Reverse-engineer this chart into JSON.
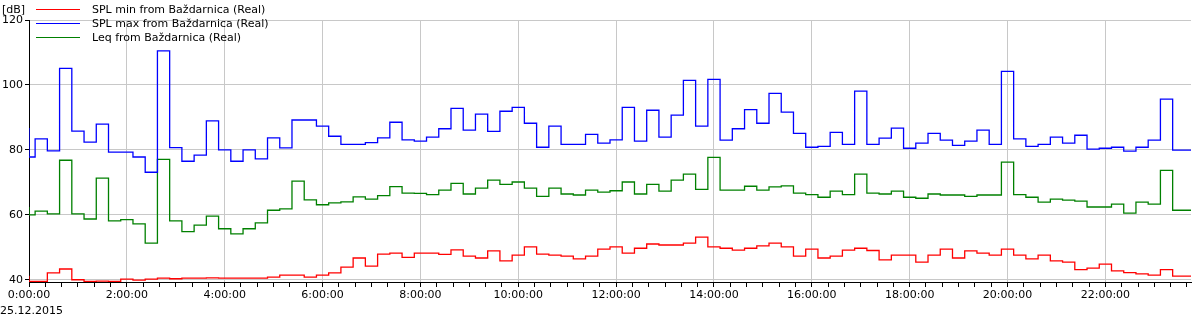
{
  "chart_data": {
    "type": "step",
    "ylabel": "[dB]",
    "legend": "top left",
    "grid": true,
    "annotations": [
      "25.12.2015"
    ],
    "xlim": [
      0,
      23.75
    ],
    "ylim": [
      39.3,
      120
    ],
    "yticks": [
      40,
      60,
      80,
      100,
      120
    ],
    "xticks": [
      {
        "value": 0,
        "label": "0:00:00"
      },
      {
        "value": 0.333,
        "label": null
      },
      {
        "value": 0.667,
        "label": null
      },
      {
        "value": 1,
        "label": null
      },
      {
        "value": 1.333,
        "label": null
      },
      {
        "value": 1.667,
        "label": null
      },
      {
        "value": 2,
        "label": "2:00:00"
      },
      {
        "value": 2.333,
        "label": null
      },
      {
        "value": 2.667,
        "label": null
      },
      {
        "value": 3,
        "label": null
      },
      {
        "value": 3.333,
        "label": null
      },
      {
        "value": 3.667,
        "label": null
      },
      {
        "value": 4,
        "label": "4:00:00"
      },
      {
        "value": 4.333,
        "label": null
      },
      {
        "value": 4.667,
        "label": null
      },
      {
        "value": 5,
        "label": null
      },
      {
        "value": 5.333,
        "label": null
      },
      {
        "value": 5.667,
        "label": null
      },
      {
        "value": 6,
        "label": "6:00:00"
      },
      {
        "value": 6.333,
        "label": null
      },
      {
        "value": 6.667,
        "label": null
      },
      {
        "value": 7,
        "label": null
      },
      {
        "value": 7.333,
        "label": null
      },
      {
        "value": 7.667,
        "label": null
      },
      {
        "value": 8,
        "label": "8:00:00"
      },
      {
        "value": 8.333,
        "label": null
      },
      {
        "value": 8.667,
        "label": null
      },
      {
        "value": 9,
        "label": null
      },
      {
        "value": 9.333,
        "label": null
      },
      {
        "value": 9.667,
        "label": null
      },
      {
        "value": 10,
        "label": "10:00:00"
      },
      {
        "value": 10.333,
        "label": null
      },
      {
        "value": 10.667,
        "label": null
      },
      {
        "value": 11,
        "label": null
      },
      {
        "value": 11.333,
        "label": null
      },
      {
        "value": 11.667,
        "label": null
      },
      {
        "value": 12,
        "label": "12:00:00"
      },
      {
        "value": 12.333,
        "label": null
      },
      {
        "value": 12.667,
        "label": null
      },
      {
        "value": 13,
        "label": null
      },
      {
        "value": 13.333,
        "label": null
      },
      {
        "value": 13.667,
        "label": null
      },
      {
        "value": 14,
        "label": "14:00:00"
      },
      {
        "value": 14.333,
        "label": null
      },
      {
        "value": 14.667,
        "label": null
      },
      {
        "value": 15,
        "label": null
      },
      {
        "value": 15.333,
        "label": null
      },
      {
        "value": 15.667,
        "label": null
      },
      {
        "value": 16,
        "label": "16:00:00"
      },
      {
        "value": 16.333,
        "label": null
      },
      {
        "value": 16.667,
        "label": null
      },
      {
        "value": 17,
        "label": null
      },
      {
        "value": 17.333,
        "label": null
      },
      {
        "value": 17.667,
        "label": null
      },
      {
        "value": 18,
        "label": "18:00:00"
      },
      {
        "value": 18.333,
        "label": null
      },
      {
        "value": 18.667,
        "label": null
      },
      {
        "value": 19,
        "label": null
      },
      {
        "value": 19.333,
        "label": null
      },
      {
        "value": 19.667,
        "label": null
      },
      {
        "value": 20,
        "label": "20:00:00"
      },
      {
        "value": 20.333,
        "label": null
      },
      {
        "value": 20.667,
        "label": null
      },
      {
        "value": 21,
        "label": null
      },
      {
        "value": 21.333,
        "label": null
      },
      {
        "value": 21.667,
        "label": null
      },
      {
        "value": 22,
        "label": "22:00:00"
      },
      {
        "value": 22.333,
        "label": null
      },
      {
        "value": 22.667,
        "label": null
      },
      {
        "value": 23,
        "label": null
      },
      {
        "value": 23.333,
        "label": null
      },
      {
        "value": 23.667,
        "label": null
      }
    ],
    "x": [
      0,
      0.125,
      0.375,
      0.625,
      0.875,
      1.125,
      1.375,
      1.625,
      1.875,
      2.125,
      2.375,
      2.625,
      2.875,
      3.125,
      3.375,
      3.625,
      3.875,
      4.125,
      4.375,
      4.625,
      4.875,
      5.125,
      5.375,
      5.625,
      5.875,
      6.125,
      6.375,
      6.625,
      6.875,
      7.125,
      7.375,
      7.625,
      7.875,
      8.125,
      8.375,
      8.625,
      8.875,
      9.125,
      9.375,
      9.625,
      9.875,
      10.125,
      10.375,
      10.625,
      10.875,
      11.125,
      11.375,
      11.625,
      11.875,
      12.125,
      12.375,
      12.625,
      12.875,
      13.125,
      13.375,
      13.625,
      13.875,
      14.125,
      14.375,
      14.625,
      14.875,
      15.125,
      15.375,
      15.625,
      15.875,
      16.125,
      16.375,
      16.625,
      16.875,
      17.125,
      17.375,
      17.625,
      17.875,
      18.125,
      18.375,
      18.625,
      18.875,
      19.125,
      19.375,
      19.625,
      19.875,
      20.125,
      20.375,
      20.625,
      20.875,
      21.125,
      21.375,
      21.625,
      21.875,
      22.125,
      22.375,
      22.625,
      22.875,
      23.125,
      23.375,
      23.625,
      23.75
    ],
    "series": [
      {
        "name": "SPL min from Baždarnica (Real)",
        "color": "#ff0000",
        "values": [
          41.2,
          39.5,
          39.5,
          42.1,
          43.3,
          40,
          39.5,
          39.6,
          39.5,
          40.2,
          39.9,
          40.2,
          40.5,
          40.3,
          40.5,
          40.5,
          40.6,
          40.5,
          40.5,
          40.5,
          40.5,
          40.8,
          41.4,
          41.4,
          40.8,
          41.4,
          42.1,
          43.9,
          46.7,
          44.2,
          47.9,
          48.2,
          46.9,
          48.2,
          48.2,
          47.8,
          49.2,
          47.3,
          46.7,
          48.9,
          45.8,
          47.6,
          50.1,
          47.9,
          47.6,
          47.3,
          46.4,
          47.3,
          49.4,
          50.1,
          48.2,
          49.7,
          51,
          50.7,
          50.7,
          51.3,
          53.1,
          50.1,
          49.7,
          49.1,
          49.7,
          50.4,
          51.3,
          50.1,
          47.3,
          49.4,
          46.7,
          47.3,
          49.1,
          49.7,
          49,
          46.1,
          47.6,
          47.6,
          45.4,
          47.6,
          49.4,
          46.7,
          48.9,
          48.2,
          47.6,
          49.4,
          47.6,
          46.4,
          47.6,
          45.8,
          45.4,
          43.1,
          43.6,
          44.8,
          42.7,
          42.2,
          41.8,
          41.4,
          43.1,
          41.1,
          41.1
        ]
      },
      {
        "name": "SPL max from Baždarnica (Real)",
        "color": "#0000ff",
        "values": [
          86.7,
          77.8,
          83.4,
          79.7,
          105.1,
          85.8,
          82.4,
          87.9,
          79.3,
          79.3,
          77.8,
          73.1,
          110.5,
          80.7,
          76.5,
          78.4,
          88.9,
          80,
          76.5,
          80,
          77.2,
          83.7,
          80.6,
          89.2,
          89.2,
          87.3,
          84.2,
          81.7,
          81.7,
          82.2,
          83.7,
          88.5,
          83.1,
          82.7,
          83.9,
          86.5,
          92.8,
          86.1,
          91,
          85.7,
          91.9,
          93.1,
          88.2,
          80.8,
          87.3,
          81.7,
          81.7,
          84.8,
          82.1,
          83.1,
          93.1,
          82.7,
          92.2,
          83.9,
          90.7,
          101.4,
          87.3,
          101.7,
          83,
          86.5,
          92.4,
          88.2,
          97.4,
          91.6,
          85.1,
          80.8,
          81.1,
          85.4,
          81.7,
          98.1,
          81.7,
          83.6,
          86.7,
          80.5,
          82.1,
          85.1,
          83,
          81.4,
          82.7,
          86.1,
          81.7,
          104.2,
          83.4,
          81.1,
          81.7,
          83.9,
          82.1,
          84.5,
          80.2,
          80.5,
          80.8,
          79.6,
          80.8,
          83,
          95.6,
          79.9,
          79.9
        ]
      },
      {
        "name": "Leq from Baždarnica (Real)",
        "color": "#008000",
        "values": [
          62.4,
          60,
          61.1,
          60.3,
          76.8,
          60.3,
          58.7,
          71.3,
          58.1,
          58.5,
          57.2,
          51.3,
          77.1,
          58.1,
          54.8,
          56.8,
          59.6,
          55.7,
          54.1,
          55.7,
          57.5,
          61.4,
          61.8,
          70.4,
          64.6,
          63.1,
          63.7,
          64,
          65.5,
          64.8,
          65.9,
          68.7,
          66.7,
          66.6,
          66.2,
          67.6,
          69.7,
          66.4,
          68.2,
          70.7,
          69.4,
          70.1,
          68.2,
          65.7,
          68.2,
          66.4,
          66.1,
          67.6,
          67,
          67.4,
          70.1,
          66.4,
          69.4,
          67.3,
          70.7,
          72.5,
          67.8,
          77.7,
          67.6,
          67.6,
          68.8,
          67.6,
          68.6,
          68.9,
          66.7,
          66.2,
          65.4,
          67.3,
          66.2,
          72.5,
          66.7,
          66.4,
          67.3,
          65.4,
          65.1,
          66.4,
          66.1,
          66.1,
          65.7,
          66.1,
          66.1,
          76.2,
          66.2,
          65.4,
          63.9,
          64.8,
          64.5,
          64.2,
          62.4,
          62.4,
          63.3,
          60.5,
          63.9,
          63.3,
          73.7,
          61.4,
          61.4
        ]
      }
    ]
  }
}
